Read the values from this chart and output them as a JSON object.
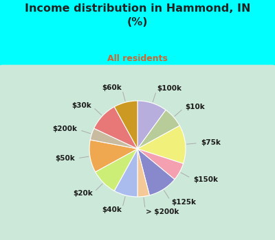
{
  "title": "Income distribution in Hammond, IN\n(%)",
  "subtitle": "All residents",
  "title_color": "#222222",
  "subtitle_color": "#cc6633",
  "bg_color": "#00ffff",
  "chart_bg_color": "#cce8d8",
  "labels": [
    "$100k",
    "$10k",
    "$75k",
    "$150k",
    "$125k",
    "> $200k",
    "$40k",
    "$20k",
    "$50k",
    "$200k",
    "$30k",
    "$60k"
  ],
  "values": [
    10,
    7,
    13,
    6,
    10,
    4,
    8,
    9,
    11,
    4,
    10,
    8
  ],
  "colors": [
    "#b8aedd",
    "#b8cc99",
    "#f0f07a",
    "#f4a0b0",
    "#8888cc",
    "#f5c898",
    "#aabbee",
    "#ccee77",
    "#f0a850",
    "#c8bba0",
    "#e87878",
    "#cc9922"
  ],
  "startangle": 90
}
